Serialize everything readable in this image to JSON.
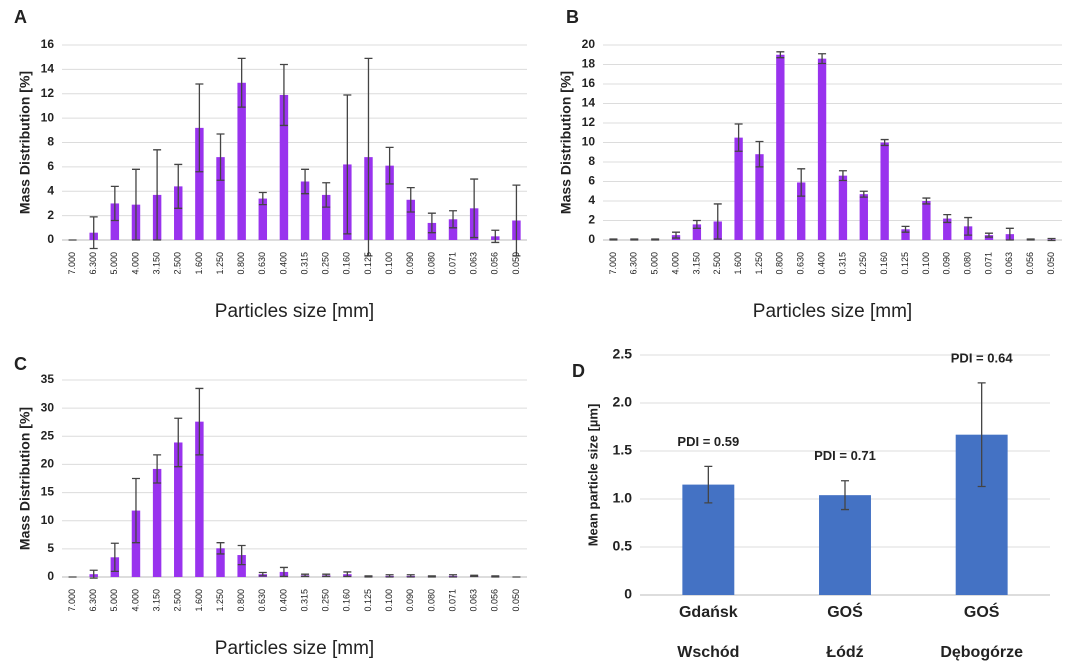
{
  "chart_data": [
    {
      "type": "bar",
      "panel_label": "A",
      "x_label": "Particles size [mm]",
      "y_label": "Mass Distribution [%]",
      "color": "#9933ee",
      "grid": true,
      "categories": [
        "7.000",
        "6.300",
        "5.000",
        "4.000",
        "3.150",
        "2.500",
        "1.600",
        "1.250",
        "0.800",
        "0.630",
        "0.400",
        "0.315",
        "0.250",
        "0.160",
        "0.125",
        "0.100",
        "0.090",
        "0.080",
        "0.071",
        "0.063",
        "0.056",
        "0.050"
      ],
      "values": [
        0,
        0.6,
        3.0,
        2.9,
        3.7,
        4.4,
        9.2,
        6.8,
        12.9,
        3.4,
        11.9,
        4.8,
        3.7,
        6.2,
        6.8,
        6.1,
        3.3,
        1.4,
        1.7,
        2.6,
        0.3,
        1.6
      ],
      "errors": [
        0,
        1.3,
        1.4,
        2.9,
        3.7,
        1.8,
        3.6,
        1.9,
        2.0,
        0.5,
        2.5,
        1.0,
        1.0,
        5.7,
        8.1,
        1.5,
        1.0,
        0.8,
        0.7,
        2.4,
        0.5,
        2.9
      ],
      "ylim": [
        0,
        16
      ],
      "yticks": [
        0,
        2,
        4,
        6,
        8,
        10,
        12,
        14,
        16
      ]
    },
    {
      "type": "bar",
      "panel_label": "B",
      "x_label": "Particles size [mm]",
      "y_label": "Mass Distribution [%]",
      "color": "#9933ee",
      "grid": true,
      "categories": [
        "7.000",
        "6.300",
        "5.000",
        "4.000",
        "3.150",
        "2.500",
        "1.600",
        "1.250",
        "0.800",
        "0.630",
        "0.400",
        "0.315",
        "0.250",
        "0.160",
        "0.125",
        "0.100",
        "0.090",
        "0.080",
        "0.071",
        "0.063",
        "0.056",
        "0.050"
      ],
      "values": [
        0.05,
        0.05,
        0.05,
        0.5,
        1.6,
        1.9,
        10.5,
        8.8,
        19.0,
        5.9,
        18.6,
        6.6,
        4.7,
        10.0,
        1.1,
        4.0,
        2.2,
        1.4,
        0.5,
        0.6,
        0.05,
        0.05
      ],
      "errors": [
        0.05,
        0.05,
        0.05,
        0.3,
        0.4,
        1.8,
        1.4,
        1.3,
        0.3,
        1.4,
        0.5,
        0.5,
        0.3,
        0.3,
        0.3,
        0.3,
        0.4,
        0.9,
        0.2,
        0.6,
        0.05,
        0.1
      ],
      "ylim": [
        0,
        20
      ],
      "yticks": [
        0,
        2,
        4,
        6,
        8,
        10,
        12,
        14,
        16,
        18,
        20
      ]
    },
    {
      "type": "bar",
      "panel_label": "C",
      "x_label": "Particles size [mm]",
      "y_label": "Mass Distribution [%]",
      "color": "#9933ee",
      "grid": true,
      "categories": [
        "7.000",
        "6.300",
        "5.000",
        "4.000",
        "3.150",
        "2.500",
        "1.600",
        "1.250",
        "0.800",
        "0.630",
        "0.400",
        "0.315",
        "0.250",
        "0.160",
        "0.125",
        "0.100",
        "0.090",
        "0.080",
        "0.071",
        "0.063",
        "0.056",
        "0.050"
      ],
      "values": [
        0,
        0.5,
        3.5,
        11.8,
        19.2,
        23.9,
        27.6,
        5.1,
        3.9,
        0.5,
        0.9,
        0.3,
        0.3,
        0.5,
        0.1,
        0.2,
        0.2,
        0.1,
        0.2,
        0.2,
        0.1,
        0
      ],
      "errors": [
        0,
        0.7,
        2.5,
        5.7,
        2.5,
        4.3,
        5.9,
        1.0,
        1.7,
        0.3,
        0.8,
        0.2,
        0.2,
        0.4,
        0.1,
        0.2,
        0.2,
        0.1,
        0.2,
        0.1,
        0.1,
        0
      ],
      "ylim": [
        0,
        35
      ],
      "yticks": [
        0,
        5,
        10,
        15,
        20,
        25,
        30,
        35
      ]
    },
    {
      "type": "bar",
      "panel_label": "D",
      "y_label": "Mean particle size [µm]",
      "color": "#4472c4",
      "grid": true,
      "categories": [
        [
          "Gdańsk",
          "Wschód"
        ],
        [
          "GOŚ",
          "Łódź"
        ],
        [
          "GOŚ",
          "Dębogórze"
        ]
      ],
      "values": [
        1.15,
        1.04,
        1.67
      ],
      "errors": [
        0.19,
        0.15,
        0.54
      ],
      "annotations": [
        "PDI = 0.59",
        "PDI = 0.71",
        "PDI = 0.64"
      ],
      "ylim": [
        0,
        2.5
      ],
      "yticks": [
        0,
        0.5,
        {
          "value": 1,
          "label": "1.0"
        },
        1.5,
        {
          "value": 2,
          "label": "2.0"
        },
        2.5
      ]
    }
  ]
}
